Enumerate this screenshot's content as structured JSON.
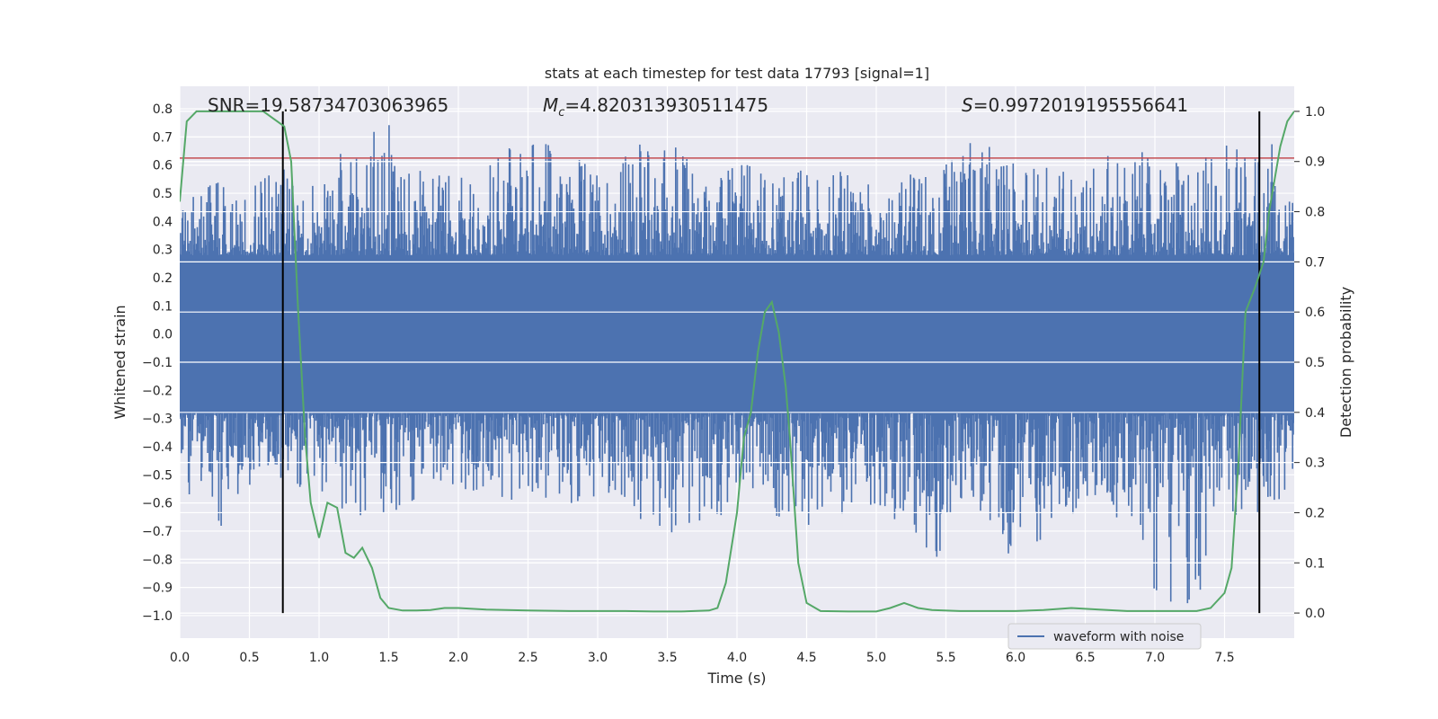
{
  "chart_data": {
    "type": "line",
    "title": "stats at each timestep for test data 17793 [signal=1]",
    "xlabel": "Time (s)",
    "ylabel": "Whitened strain",
    "y2label": "Detection probability",
    "xlim": [
      0.0,
      8.0
    ],
    "ylim": [
      -1.08,
      0.88
    ],
    "y2lim": [
      -0.05,
      1.05
    ],
    "xticks": [
      "0.0",
      "0.5",
      "1.0",
      "1.5",
      "2.0",
      "2.5",
      "3.0",
      "3.5",
      "4.0",
      "4.5",
      "5.0",
      "5.5",
      "6.0",
      "6.5",
      "7.0",
      "7.5"
    ],
    "yticks": [
      "0.8",
      "0.7",
      "0.6",
      "0.5",
      "0.4",
      "0.3",
      "0.2",
      "0.1",
      "0.0",
      "−0.1",
      "−0.2",
      "−0.3",
      "−0.4",
      "−0.5",
      "−0.6",
      "−0.7",
      "−0.8",
      "−0.9",
      "−1.0"
    ],
    "y2ticks": [
      "1.0",
      "0.9",
      "0.8",
      "0.7",
      "0.6",
      "0.5",
      "0.4",
      "0.3",
      "0.2",
      "0.1",
      "0.0"
    ],
    "grid": true,
    "legend_position": "lower-right",
    "colors": {
      "background": "#eaeaf2",
      "waveform": "#4c72b0",
      "probability": "#55a868",
      "threshold": "#c44e52",
      "markers": "#000000",
      "grid": "#ffffff"
    },
    "annotations": {
      "snr": "SNR=19.58734703063965",
      "mc_symbol": "M",
      "mc_sub": "c",
      "mc_value": "=4.820313930511475",
      "s_symbol": "S",
      "s_value": "=0.9972019195556641"
    },
    "threshold_y": 0.625,
    "vertical_markers": [
      0.74,
      7.75
    ],
    "series": [
      {
        "name": "waveform with noise",
        "axis": "left",
        "style": "noisy-band",
        "band_amplitude": 0.28,
        "x": [
          0.0,
          0.05,
          0.1,
          0.3,
          0.35,
          0.45,
          0.75,
          1.0,
          1.5,
          1.7,
          2.0,
          2.5,
          3.0,
          3.5,
          3.84,
          4.0,
          4.5,
          5.0,
          5.5,
          5.65,
          6.0,
          6.5,
          6.9,
          7.0,
          7.3,
          7.5,
          7.7,
          7.75,
          8.0
        ],
        "values_max": [
          0.45,
          0.74,
          0.5,
          0.55,
          0.45,
          0.5,
          0.6,
          0.6,
          0.75,
          0.6,
          0.55,
          0.7,
          0.6,
          0.72,
          0.55,
          0.6,
          0.6,
          0.55,
          0.6,
          0.72,
          0.6,
          0.62,
          0.65,
          0.6,
          0.62,
          0.7,
          0.6,
          0.8,
          0.45
        ],
        "values_min": [
          -0.4,
          -0.61,
          -0.5,
          -0.69,
          -0.6,
          -0.63,
          -0.5,
          -0.6,
          -0.68,
          -0.6,
          -0.55,
          -0.6,
          -0.6,
          -0.75,
          -0.66,
          -0.6,
          -0.68,
          -0.6,
          -0.82,
          -0.6,
          -0.81,
          -0.6,
          -0.7,
          -0.92,
          -1.0,
          -0.6,
          -0.7,
          -0.7,
          -0.5
        ]
      },
      {
        "name": "",
        "axis": "right",
        "x": [
          0.0,
          0.05,
          0.12,
          0.2,
          0.3,
          0.4,
          0.5,
          0.6,
          0.7,
          0.75,
          0.8,
          0.85,
          0.9,
          0.94,
          1.0,
          1.06,
          1.13,
          1.19,
          1.25,
          1.31,
          1.38,
          1.44,
          1.5,
          1.6,
          1.7,
          1.8,
          1.9,
          2.0,
          2.2,
          2.5,
          2.8,
          3.0,
          3.2,
          3.4,
          3.6,
          3.8,
          3.86,
          3.92,
          4.0,
          4.05,
          4.1,
          4.15,
          4.2,
          4.25,
          4.3,
          4.35,
          4.38,
          4.44,
          4.5,
          4.6,
          4.8,
          5.0,
          5.1,
          5.2,
          5.3,
          5.4,
          5.6,
          6.0,
          6.2,
          6.4,
          6.6,
          6.8,
          7.0,
          7.2,
          7.3,
          7.4,
          7.5,
          7.55,
          7.6,
          7.65,
          7.72,
          7.78,
          7.82,
          7.9,
          7.95,
          8.0
        ],
        "values": [
          0.82,
          0.98,
          1.0,
          1.0,
          1.0,
          1.0,
          1.0,
          1.0,
          0.98,
          0.97,
          0.9,
          0.6,
          0.35,
          0.22,
          0.15,
          0.22,
          0.21,
          0.12,
          0.11,
          0.13,
          0.09,
          0.03,
          0.01,
          0.005,
          0.005,
          0.006,
          0.01,
          0.01,
          0.007,
          0.005,
          0.004,
          0.004,
          0.004,
          0.003,
          0.003,
          0.005,
          0.01,
          0.06,
          0.2,
          0.35,
          0.4,
          0.52,
          0.6,
          0.62,
          0.56,
          0.45,
          0.35,
          0.1,
          0.02,
          0.004,
          0.003,
          0.003,
          0.01,
          0.02,
          0.01,
          0.006,
          0.004,
          0.004,
          0.006,
          0.01,
          0.007,
          0.004,
          0.004,
          0.004,
          0.004,
          0.01,
          0.04,
          0.09,
          0.3,
          0.6,
          0.65,
          0.7,
          0.8,
          0.93,
          0.98,
          1.0
        ]
      }
    ]
  }
}
